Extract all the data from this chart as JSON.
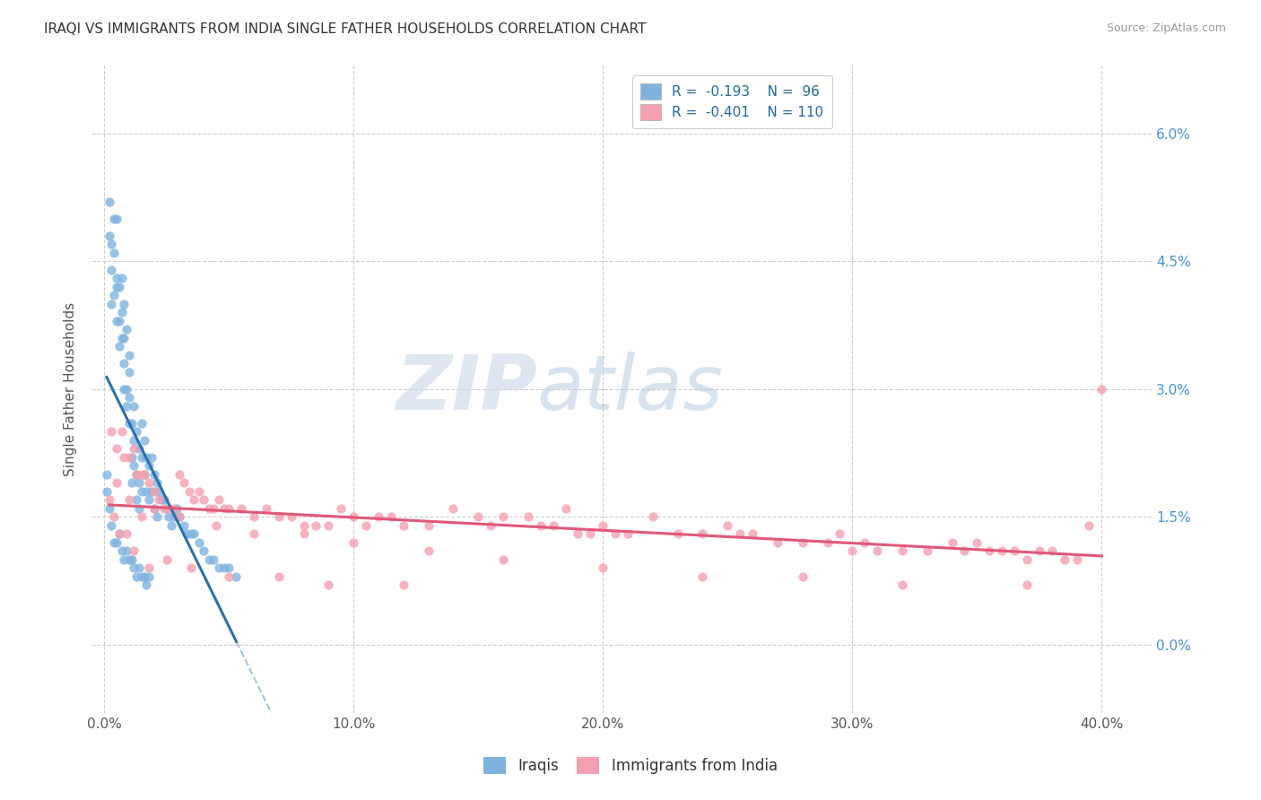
{
  "title": "IRAQI VS IMMIGRANTS FROM INDIA SINGLE FATHER HOUSEHOLDS CORRELATION CHART",
  "source": "Source: ZipAtlas.com",
  "ylabel": "Single Father Households",
  "ytick_vals": [
    0.0,
    0.015,
    0.03,
    0.045,
    0.06
  ],
  "ytick_labels": [
    "0.0%",
    "1.5%",
    "3.0%",
    "4.5%",
    "6.0%"
  ],
  "xtick_vals": [
    0.0,
    0.1,
    0.2,
    0.3,
    0.4
  ],
  "xtick_labels": [
    "0.0%",
    "10.0%",
    "20.0%",
    "30.0%",
    "40.0%"
  ],
  "xlim": [
    -0.005,
    0.42
  ],
  "ylim": [
    -0.008,
    0.068
  ],
  "watermark_zip": "ZIP",
  "watermark_atlas": "atlas",
  "color_iraqi": "#7eb3e0",
  "color_india": "#f4a0b0",
  "color_line_iraqi": "#2c6fad",
  "color_line_india": "#e05878",
  "color_line_dashed": "#a0c4e8",
  "background_color": "#ffffff",
  "iraqi_x": [
    0.001,
    0.002,
    0.002,
    0.003,
    0.003,
    0.003,
    0.004,
    0.004,
    0.004,
    0.005,
    0.005,
    0.005,
    0.005,
    0.006,
    0.006,
    0.006,
    0.007,
    0.007,
    0.007,
    0.008,
    0.008,
    0.008,
    0.008,
    0.009,
    0.009,
    0.009,
    0.01,
    0.01,
    0.01,
    0.01,
    0.011,
    0.011,
    0.011,
    0.012,
    0.012,
    0.012,
    0.013,
    0.013,
    0.013,
    0.014,
    0.014,
    0.014,
    0.015,
    0.015,
    0.015,
    0.016,
    0.016,
    0.017,
    0.017,
    0.018,
    0.018,
    0.019,
    0.019,
    0.02,
    0.02,
    0.021,
    0.021,
    0.022,
    0.023,
    0.024,
    0.025,
    0.026,
    0.027,
    0.028,
    0.029,
    0.03,
    0.032,
    0.033,
    0.035,
    0.036,
    0.038,
    0.04,
    0.042,
    0.044,
    0.046,
    0.048,
    0.05,
    0.053,
    0.001,
    0.002,
    0.003,
    0.004,
    0.005,
    0.006,
    0.007,
    0.008,
    0.009,
    0.01,
    0.011,
    0.012,
    0.013,
    0.014,
    0.015,
    0.016,
    0.017,
    0.018
  ],
  "iraqi_y": [
    0.02,
    0.052,
    0.048,
    0.044,
    0.047,
    0.04,
    0.05,
    0.046,
    0.041,
    0.042,
    0.038,
    0.05,
    0.043,
    0.042,
    0.038,
    0.035,
    0.043,
    0.039,
    0.036,
    0.036,
    0.033,
    0.04,
    0.03,
    0.037,
    0.03,
    0.028,
    0.032,
    0.034,
    0.029,
    0.026,
    0.026,
    0.022,
    0.019,
    0.028,
    0.024,
    0.021,
    0.025,
    0.02,
    0.017,
    0.023,
    0.019,
    0.016,
    0.026,
    0.022,
    0.018,
    0.024,
    0.02,
    0.022,
    0.018,
    0.021,
    0.017,
    0.022,
    0.018,
    0.02,
    0.016,
    0.019,
    0.015,
    0.018,
    0.017,
    0.017,
    0.016,
    0.015,
    0.014,
    0.015,
    0.016,
    0.015,
    0.014,
    0.013,
    0.013,
    0.013,
    0.012,
    0.011,
    0.01,
    0.01,
    0.009,
    0.009,
    0.009,
    0.008,
    0.018,
    0.016,
    0.014,
    0.012,
    0.012,
    0.013,
    0.011,
    0.01,
    0.011,
    0.01,
    0.01,
    0.009,
    0.008,
    0.009,
    0.008,
    0.008,
    0.007,
    0.008
  ],
  "india_x": [
    0.003,
    0.005,
    0.007,
    0.008,
    0.01,
    0.012,
    0.013,
    0.015,
    0.016,
    0.018,
    0.02,
    0.022,
    0.024,
    0.026,
    0.028,
    0.03,
    0.032,
    0.034,
    0.036,
    0.038,
    0.04,
    0.042,
    0.044,
    0.046,
    0.048,
    0.05,
    0.055,
    0.06,
    0.065,
    0.07,
    0.075,
    0.08,
    0.085,
    0.09,
    0.095,
    0.1,
    0.105,
    0.11,
    0.115,
    0.12,
    0.13,
    0.14,
    0.15,
    0.155,
    0.16,
    0.17,
    0.175,
    0.18,
    0.185,
    0.19,
    0.195,
    0.2,
    0.205,
    0.21,
    0.22,
    0.23,
    0.24,
    0.25,
    0.255,
    0.26,
    0.27,
    0.28,
    0.29,
    0.295,
    0.3,
    0.305,
    0.31,
    0.32,
    0.33,
    0.34,
    0.345,
    0.35,
    0.355,
    0.36,
    0.365,
    0.37,
    0.375,
    0.38,
    0.385,
    0.39,
    0.005,
    0.01,
    0.015,
    0.02,
    0.03,
    0.045,
    0.06,
    0.08,
    0.1,
    0.13,
    0.16,
    0.2,
    0.24,
    0.28,
    0.32,
    0.37,
    0.395,
    0.4,
    0.002,
    0.004,
    0.006,
    0.009,
    0.012,
    0.018,
    0.025,
    0.035,
    0.05,
    0.07,
    0.09,
    0.12
  ],
  "india_y": [
    0.025,
    0.023,
    0.025,
    0.022,
    0.022,
    0.023,
    0.02,
    0.02,
    0.02,
    0.019,
    0.018,
    0.017,
    0.016,
    0.016,
    0.016,
    0.02,
    0.019,
    0.018,
    0.017,
    0.018,
    0.017,
    0.016,
    0.016,
    0.017,
    0.016,
    0.016,
    0.016,
    0.015,
    0.016,
    0.015,
    0.015,
    0.014,
    0.014,
    0.014,
    0.016,
    0.015,
    0.014,
    0.015,
    0.015,
    0.014,
    0.014,
    0.016,
    0.015,
    0.014,
    0.015,
    0.015,
    0.014,
    0.014,
    0.016,
    0.013,
    0.013,
    0.014,
    0.013,
    0.013,
    0.015,
    0.013,
    0.013,
    0.014,
    0.013,
    0.013,
    0.012,
    0.012,
    0.012,
    0.013,
    0.011,
    0.012,
    0.011,
    0.011,
    0.011,
    0.012,
    0.011,
    0.012,
    0.011,
    0.011,
    0.011,
    0.01,
    0.011,
    0.011,
    0.01,
    0.01,
    0.019,
    0.017,
    0.015,
    0.016,
    0.015,
    0.014,
    0.013,
    0.013,
    0.012,
    0.011,
    0.01,
    0.009,
    0.008,
    0.008,
    0.007,
    0.007,
    0.014,
    0.03,
    0.017,
    0.015,
    0.013,
    0.013,
    0.011,
    0.009,
    0.01,
    0.009,
    0.008,
    0.008,
    0.007,
    0.007
  ]
}
